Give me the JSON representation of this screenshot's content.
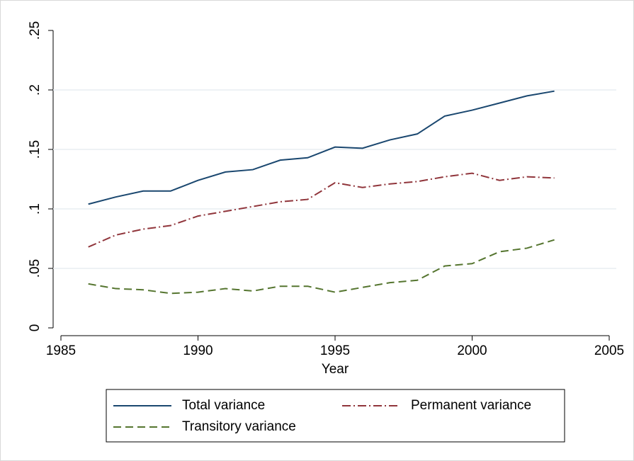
{
  "chart_data": {
    "type": "line",
    "x_label": "Year",
    "x": [
      1986,
      1987,
      1988,
      1989,
      1990,
      1991,
      1992,
      1993,
      1994,
      1995,
      1996,
      1997,
      1998,
      1999,
      2000,
      2001,
      2002,
      2003
    ],
    "series": [
      {
        "name": "Total variance",
        "color": "#1a476f",
        "dash": "solid",
        "values": [
          0.104,
          0.11,
          0.115,
          0.115,
          0.124,
          0.131,
          0.133,
          0.141,
          0.143,
          0.152,
          0.151,
          0.158,
          0.163,
          0.178,
          0.183,
          0.189,
          0.195,
          0.199
        ]
      },
      {
        "name": "Permanent variance",
        "color": "#90353b",
        "dash": "dashdot",
        "values": [
          0.068,
          0.078,
          0.083,
          0.086,
          0.094,
          0.098,
          0.102,
          0.106,
          0.108,
          0.122,
          0.118,
          0.121,
          0.123,
          0.127,
          0.13,
          0.124,
          0.127,
          0.126
        ]
      },
      {
        "name": "Transitory variance",
        "color": "#55752f",
        "dash": "dash",
        "values": [
          0.037,
          0.033,
          0.032,
          0.029,
          0.03,
          0.033,
          0.031,
          0.035,
          0.035,
          0.03,
          0.034,
          0.038,
          0.04,
          0.052,
          0.054,
          0.064,
          0.067,
          0.074
        ]
      }
    ],
    "xlim": [
      1985,
      2005
    ],
    "xticks": [
      1985,
      1990,
      1995,
      2000,
      2005
    ],
    "ylim": [
      0,
      0.25
    ],
    "yticks": [
      0,
      {
        "value": 0.05,
        "label": ".05"
      },
      {
        "value": 0.1,
        "label": ".1"
      },
      {
        "value": 0.15,
        "label": ".15"
      },
      {
        "value": 0.2,
        "label": ".2"
      },
      {
        "value": 0.25,
        "label": ".25"
      }
    ],
    "grid": true,
    "legend": "bottom"
  }
}
